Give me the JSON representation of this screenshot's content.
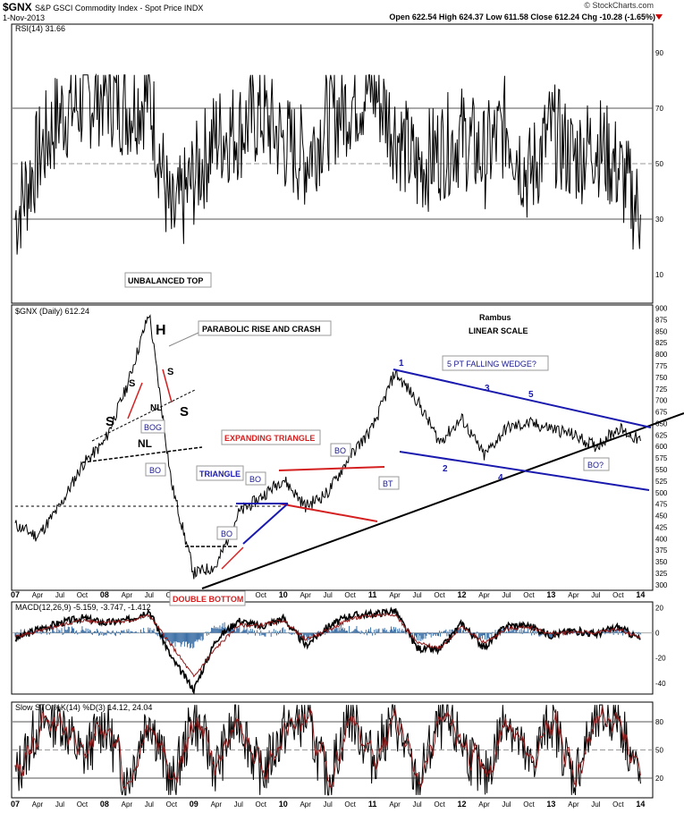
{
  "header": {
    "symbol": "$GNX",
    "name": "S&P GSCI Commodity Index - Spot Price INDX",
    "date": "1-Nov-2013",
    "watermark": "© StockCharts.com",
    "ohlc": "Open 622.54  High 624.37  Low 611.58  Close 612.24  Chg -10.28 (-1.65%)",
    "change_direction_icon": "down-triangle-icon"
  },
  "colors": {
    "price": "#000000",
    "trendline_blue": "#1a1aaf",
    "trendline_red": "#d42020",
    "macd_hist": "#3a6ea5",
    "signal_red": "#8b1a1a",
    "rsi_fill": "#a05050"
  },
  "chart_data": [
    {
      "type": "line",
      "id": "rsi",
      "title": "RSI(14) 31.66",
      "ylim": [
        0,
        100
      ],
      "y_ticks": [
        10,
        30,
        50,
        70,
        90
      ],
      "guides": [
        30,
        50,
        70
      ],
      "x": [
        "Jan 07",
        "Apr 07",
        "Jul 07",
        "Oct 07",
        "Jan 08",
        "Apr 08",
        "Jul 08",
        "Oct 08",
        "Jan 09",
        "Apr 09",
        "Jul 09",
        "Oct 09",
        "Jan 10",
        "Apr 10",
        "Jul 10",
        "Oct 10",
        "Jan 11",
        "Apr 11",
        "Jul 11",
        "Oct 11",
        "Jan 12",
        "Apr 12",
        "Jul 12",
        "Oct 12",
        "Jan 13",
        "Apr 13",
        "Jul 13",
        "Oct 13",
        "Nov 13"
      ],
      "values": [
        30,
        52,
        68,
        72,
        76,
        70,
        75,
        28,
        45,
        60,
        62,
        68,
        58,
        52,
        66,
        72,
        78,
        62,
        48,
        55,
        60,
        52,
        64,
        45,
        62,
        52,
        58,
        48,
        31.66
      ]
    },
    {
      "type": "line",
      "id": "price",
      "title": "$GNX (Daily) 612.24",
      "scale": "linear",
      "ylim": [
        290,
        905
      ],
      "y_ticks": [
        300,
        325,
        350,
        375,
        400,
        425,
        450,
        475,
        500,
        525,
        550,
        575,
        600,
        625,
        650,
        675,
        700,
        725,
        750,
        775,
        800,
        825,
        850,
        875,
        900
      ],
      "x": [
        "Jan 07",
        "Apr 07",
        "Jul 07",
        "Oct 07",
        "Jan 08",
        "Apr 08",
        "Jul 08",
        "Oct 08",
        "Jan 09",
        "Apr 09",
        "Jul 09",
        "Oct 09",
        "Jan 10",
        "Apr 10",
        "Jul 10",
        "Oct 10",
        "Jan 11",
        "Apr 11",
        "Jul 11",
        "Oct 11",
        "Jan 12",
        "Apr 12",
        "Jul 12",
        "Oct 12",
        "Jan 13",
        "Apr 13",
        "Jul 13",
        "Oct 13",
        "Nov 13"
      ],
      "values": [
        430,
        405,
        470,
        560,
        610,
        730,
        890,
        520,
        325,
        340,
        455,
        490,
        530,
        470,
        500,
        580,
        640,
        760,
        700,
        610,
        660,
        580,
        640,
        650,
        640,
        625,
        600,
        640,
        612
      ]
    },
    {
      "type": "line",
      "id": "macd",
      "title": "MACD(12,26,9) -5.159, -3.747, -1.412",
      "ylim": [
        -48,
        24
      ],
      "y_ticks": [
        -40,
        -20,
        0,
        20
      ],
      "series": [
        {
          "values": [
            -5,
            3,
            8,
            12,
            8,
            10,
            18,
            -20,
            -45,
            -5,
            10,
            5,
            12,
            -10,
            5,
            14,
            15,
            18,
            -12,
            -14,
            8,
            -12,
            6,
            6,
            -2,
            2,
            -1,
            5,
            -5.159
          ]
        },
        {
          "values": [
            -3,
            1,
            6,
            10,
            9,
            9,
            14,
            -10,
            -35,
            -12,
            6,
            6,
            10,
            -5,
            2,
            11,
            14,
            15,
            -8,
            -12,
            5,
            -8,
            3,
            5,
            -1,
            1,
            0,
            3,
            -3.747
          ]
        }
      ]
    },
    {
      "type": "line",
      "id": "sto",
      "title": "Slow STO %K(14) %D(3) 14.12, 24.04",
      "ylim": [
        0,
        100
      ],
      "y_ticks": [
        20,
        50,
        80
      ],
      "guides": [
        20,
        50,
        80
      ],
      "values": [
        20,
        75,
        85,
        40,
        80,
        15,
        90,
        10,
        85,
        30,
        88,
        20,
        70,
        85,
        15,
        90,
        40,
        85,
        10,
        80,
        60,
        15,
        90,
        30,
        85,
        20,
        80,
        88,
        14.12
      ]
    }
  ],
  "axis": {
    "x_ticks": [
      "07",
      "Apr",
      "Jul",
      "Oct",
      "08",
      "Apr",
      "Jul",
      "Oct",
      "09",
      "Apr",
      "Jul",
      "Oct",
      "10",
      "Apr",
      "Jul",
      "Oct",
      "11",
      "Apr",
      "Jul",
      "Oct",
      "12",
      "Apr",
      "Jul",
      "Oct",
      "13",
      "Apr",
      "Jul",
      "Oct",
      "14"
    ]
  },
  "annotations": {
    "unbalanced_top": "UNBALANCED TOP",
    "h": "H",
    "s_left": "S",
    "s_right": "S",
    "s_small_left": "S",
    "s_small_right": "S",
    "nl_small": "NL",
    "nl_large": "NL",
    "bog": "BOG",
    "parabolic": "PARABOLIC RISE AND CRASH",
    "bo_1": "BO",
    "bo_2": "BO",
    "bo_3": "BO",
    "bo_4": "BO",
    "bo_q": "BO?",
    "bt": "BT",
    "triangle": "TRIANGLE",
    "expanding_triangle": "EXPANDING TRIANGLE",
    "double_bottom": "DOUBLE BOTTOM",
    "rambus": "Rambus",
    "linear_scale": "LINEAR SCALE",
    "falling_wedge": "5 PT FALLING WEDGE?",
    "pt1": "1",
    "pt2": "2",
    "pt3": "3",
    "pt4": "4",
    "pt5": "5"
  }
}
